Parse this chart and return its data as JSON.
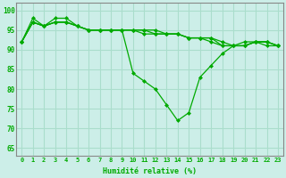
{
  "xlabel": "Humidité relative (%)",
  "background_color": "#cceee8",
  "grid_color": "#aaddcc",
  "line_color": "#00aa00",
  "marker_color": "#00aa00",
  "xlim": [
    -0.5,
    23.5
  ],
  "ylim": [
    63,
    102
  ],
  "yticks": [
    65,
    70,
    75,
    80,
    85,
    90,
    95,
    100
  ],
  "xticks": [
    0,
    1,
    2,
    3,
    4,
    5,
    6,
    7,
    8,
    9,
    10,
    11,
    12,
    13,
    14,
    15,
    16,
    17,
    18,
    19,
    20,
    21,
    22,
    23
  ],
  "series": [
    [
      92,
      98,
      96,
      98,
      98,
      96,
      95,
      95,
      95,
      95,
      84,
      82,
      80,
      76,
      72,
      74,
      83,
      86,
      89,
      91,
      92,
      92,
      91,
      91
    ],
    [
      92,
      97,
      96,
      97,
      97,
      96,
      95,
      95,
      95,
      95,
      95,
      94,
      94,
      94,
      94,
      93,
      93,
      93,
      91,
      91,
      91,
      92,
      92,
      91
    ],
    [
      92,
      97,
      96,
      97,
      97,
      96,
      95,
      95,
      95,
      95,
      95,
      95,
      94,
      94,
      94,
      93,
      93,
      93,
      92,
      91,
      91,
      92,
      92,
      91
    ],
    [
      92,
      97,
      96,
      97,
      97,
      96,
      95,
      95,
      95,
      95,
      95,
      95,
      95,
      94,
      94,
      93,
      93,
      92,
      91,
      91,
      91,
      92,
      92,
      91
    ]
  ]
}
